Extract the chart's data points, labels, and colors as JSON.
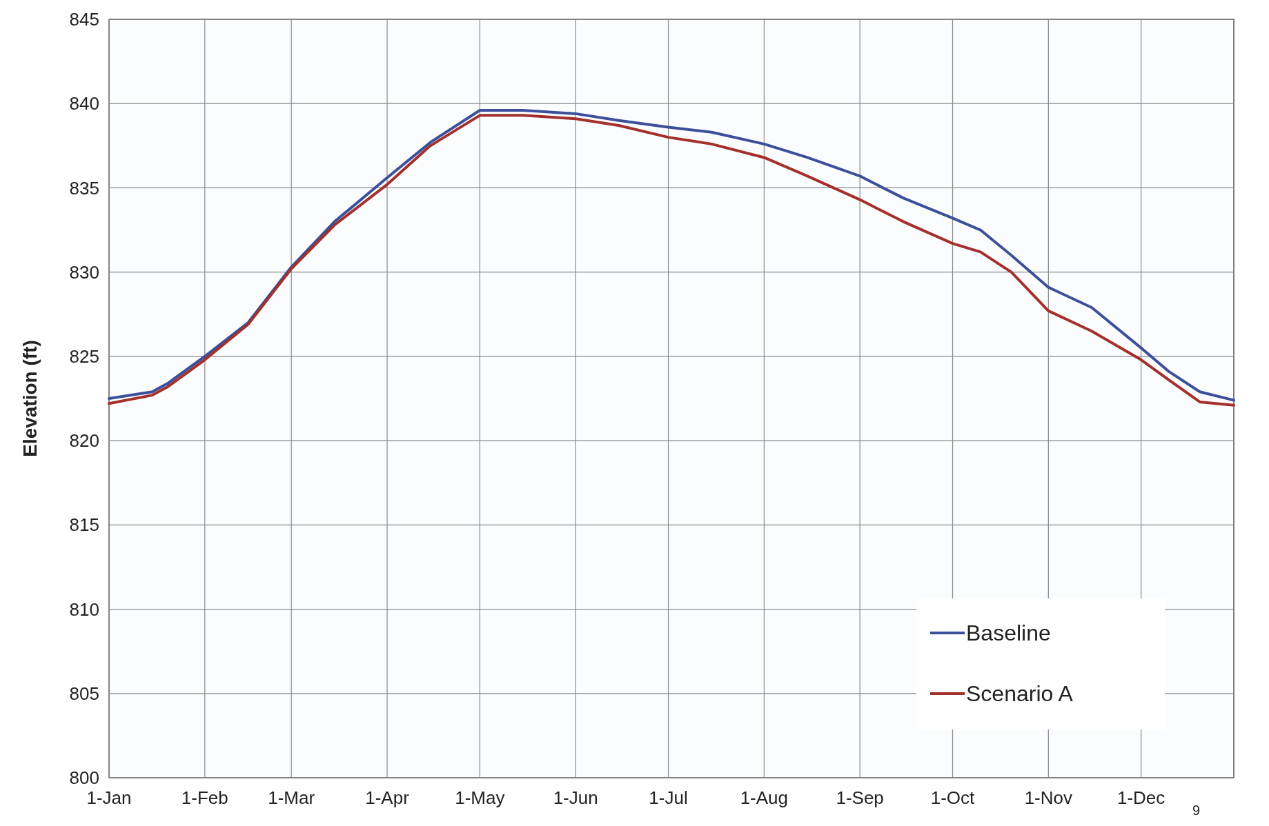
{
  "chart_data": {
    "type": "line",
    "ylabel": "Elevation (ft)",
    "x": [
      "--01-01",
      "--01-15",
      "--01-20",
      "--02-01",
      "--02-15",
      "--03-01",
      "--03-15",
      "--04-01",
      "--04-15",
      "--05-01",
      "--05-15",
      "--06-01",
      "--06-15",
      "--07-01",
      "--07-15",
      "--08-01",
      "--08-15",
      "--09-01",
      "--09-15",
      "--10-01",
      "--10-10",
      "--10-20",
      "--11-01",
      "--11-15",
      "--12-01",
      "--12-10",
      "--12-20",
      "--12-31"
    ],
    "series": [
      {
        "name": "Baseline",
        "color": "#3c4f9a",
        "values": [
          822.5,
          822.9,
          823.4,
          825.0,
          827.0,
          830.3,
          833.0,
          835.6,
          837.7,
          839.6,
          839.6,
          839.4,
          839.0,
          838.6,
          838.3,
          837.6,
          836.8,
          835.7,
          834.4,
          833.2,
          832.5,
          831.0,
          829.1,
          827.9,
          825.5,
          824.1,
          822.9,
          822.4
        ]
      },
      {
        "name": "Scenario A",
        "color": "#a3302a",
        "values": [
          822.2,
          822.7,
          823.2,
          824.8,
          826.9,
          830.2,
          832.8,
          835.2,
          837.5,
          839.3,
          839.3,
          839.1,
          838.7,
          838.0,
          837.6,
          836.8,
          835.7,
          834.3,
          833.0,
          831.7,
          831.2,
          830.0,
          827.7,
          826.5,
          824.8,
          823.6,
          822.3,
          822.1
        ]
      }
    ],
    "xlim": [
      "--01-01",
      "--12-31"
    ],
    "xticks": [
      {
        "value": "--01-01",
        "label": "1-Jan"
      },
      {
        "value": "--02-01",
        "label": "1-Feb"
      },
      {
        "value": "--03-01",
        "label": "1-Mar"
      },
      {
        "value": "--04-01",
        "label": "1-Apr"
      },
      {
        "value": "--05-01",
        "label": "1-May"
      },
      {
        "value": "--06-01",
        "label": "1-Jun"
      },
      {
        "value": "--07-01",
        "label": "1-Jul"
      },
      {
        "value": "--08-01",
        "label": "1-Aug"
      },
      {
        "value": "--09-01",
        "label": "1-Sep"
      },
      {
        "value": "--10-01",
        "label": "1-Oct"
      },
      {
        "value": "--11-01",
        "label": "1-Nov"
      },
      {
        "value": "--12-01",
        "label": "1-Dec"
      }
    ],
    "ylim": [
      800,
      845
    ],
    "yticks": [
      800,
      805,
      810,
      815,
      820,
      825,
      830,
      835,
      840,
      845
    ],
    "grid": true,
    "legend": "bottom right",
    "line_style": "solid",
    "annotations": [
      "9"
    ]
  }
}
